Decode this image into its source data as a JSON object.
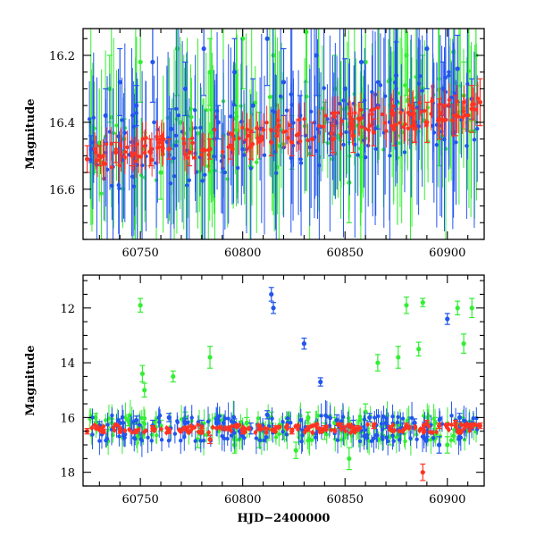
{
  "chart_data": [
    {
      "type": "scatter",
      "panel": "top",
      "title": "",
      "xlabel": "",
      "ylabel": "Magnitude",
      "xlim": [
        60722,
        60918
      ],
      "ylim": [
        16.75,
        16.12
      ],
      "y_inverted": true,
      "x_ticks": [
        60750,
        60800,
        60850,
        60900
      ],
      "x_tick_labels": [
        "60750",
        "60800",
        "60850",
        "60900"
      ],
      "y_ticks": [
        16.2,
        16.4,
        16.6
      ],
      "y_tick_labels": [
        "16.2",
        "16.4",
        "16.6"
      ],
      "grid": false,
      "legend": "none",
      "series": [
        {
          "color": "#33ee33",
          "x": [
            60728,
            60735,
            60742,
            60750,
            60752,
            60760,
            60768,
            60775,
            60784,
            60790,
            60800,
            60808,
            60815,
            60824,
            60831,
            60840,
            60845,
            60852,
            60860,
            60872,
            60880,
            60888,
            60896,
            60903,
            60908,
            60914
          ],
          "y": [
            16.52,
            16.3,
            16.45,
            16.22,
            16.48,
            16.55,
            16.18,
            16.42,
            16.25,
            16.5,
            16.15,
            16.44,
            16.2,
            16.46,
            16.13,
            16.4,
            16.3,
            16.58,
            16.22,
            16.35,
            16.2,
            16.3,
            16.45,
            16.19,
            16.32,
            16.2
          ],
          "yerr": [
            0.03,
            0.1,
            0.06,
            0.12,
            0.05,
            0.08,
            0.14,
            0.06,
            0.1,
            0.05,
            0.15,
            0.07,
            0.12,
            0.08,
            0.15,
            0.06,
            0.1,
            0.12,
            0.14,
            0.08,
            0.12,
            0.1,
            0.08,
            0.12,
            0.1,
            0.09
          ]
        },
        {
          "color": "#2255ee",
          "x": [
            60726,
            60733,
            60740,
            60748,
            60756,
            60765,
            60772,
            60781,
            60788,
            60796,
            60805,
            60812,
            60820,
            60828,
            60836,
            60843,
            60850,
            60858,
            60866,
            60875,
            60884,
            60890,
            60898,
            60905,
            60912
          ],
          "y": [
            16.48,
            16.38,
            16.28,
            16.35,
            16.22,
            16.42,
            16.3,
            16.18,
            16.4,
            16.25,
            16.35,
            16.15,
            16.28,
            16.38,
            16.2,
            16.45,
            16.3,
            16.22,
            16.35,
            16.26,
            16.4,
            16.18,
            16.3,
            16.24,
            16.33
          ],
          "yerr": [
            0.04,
            0.08,
            0.1,
            0.06,
            0.12,
            0.06,
            0.08,
            0.14,
            0.05,
            0.1,
            0.08,
            0.14,
            0.1,
            0.06,
            0.12,
            0.05,
            0.09,
            0.12,
            0.07,
            0.1,
            0.06,
            0.12,
            0.08,
            0.1,
            0.06
          ]
        },
        {
          "color": "#ff3322",
          "x": [
            60724,
            60730,
            60738,
            60746,
            60755,
            60764,
            60774,
            60784,
            60794,
            60804,
            60814,
            60824,
            60834,
            60844,
            60854,
            60864,
            60874,
            60884,
            60890,
            60896,
            60904,
            60912,
            60916
          ],
          "y": [
            16.51,
            16.5,
            16.49,
            16.5,
            16.49,
            16.48,
            16.49,
            16.48,
            16.47,
            16.47,
            16.46,
            16.46,
            16.45,
            16.45,
            16.44,
            16.43,
            16.42,
            16.41,
            16.4,
            16.39,
            16.38,
            16.36,
            16.34
          ],
          "yerr": [
            0.04,
            0.03,
            0.03,
            0.03,
            0.04,
            0.03,
            0.04,
            0.03,
            0.04,
            0.04,
            0.04,
            0.04,
            0.05,
            0.04,
            0.05,
            0.04,
            0.05,
            0.05,
            0.06,
            0.06,
            0.06,
            0.07,
            0.07
          ]
        }
      ]
    },
    {
      "type": "scatter",
      "panel": "bottom",
      "title": "",
      "xlabel": "HJD−2400000",
      "ylabel": "Magnitude",
      "xlim": [
        60722,
        60918
      ],
      "ylim": [
        18.5,
        10.8
      ],
      "y_inverted": true,
      "x_ticks": [
        60750,
        60800,
        60850,
        60900
      ],
      "x_tick_labels": [
        "60750",
        "60800",
        "60850",
        "60900"
      ],
      "y_ticks": [
        12,
        14,
        16,
        18
      ],
      "y_tick_labels": [
        "12",
        "14",
        "16",
        "18"
      ],
      "grid": false,
      "legend": "none",
      "series": [
        {
          "color": "#33ee33",
          "x": [
            60728,
            60736,
            60744,
            60750,
            60751,
            60752,
            60760,
            60766,
            60772,
            60778,
            60784,
            60790,
            60796,
            60802,
            60808,
            60814,
            60820,
            60826,
            60832,
            60840,
            60845,
            60852,
            60860,
            60866,
            60872,
            60876,
            60880,
            60886,
            60888,
            60894,
            60900,
            60905,
            60908,
            60912
          ],
          "y": [
            16.0,
            16.2,
            16.1,
            11.9,
            14.4,
            15.0,
            16.3,
            14.5,
            16.0,
            16.8,
            13.8,
            16.1,
            17.0,
            16.2,
            16.8,
            16.0,
            16.5,
            17.2,
            16.0,
            16.5,
            16.2,
            17.5,
            15.8,
            14.0,
            16.7,
            13.8,
            11.9,
            13.5,
            11.8,
            16.2,
            17.0,
            12.0,
            13.3,
            12.0
          ],
          "yerr": [
            0.15,
            0.15,
            0.2,
            0.25,
            0.3,
            0.25,
            0.2,
            0.2,
            0.2,
            0.3,
            0.4,
            0.2,
            0.3,
            0.2,
            0.3,
            0.2,
            0.3,
            0.3,
            0.2,
            0.3,
            0.2,
            0.4,
            0.3,
            0.3,
            0.3,
            0.4,
            0.3,
            0.25,
            0.15,
            0.2,
            0.3,
            0.25,
            0.35,
            0.35
          ]
        },
        {
          "color": "#2255ee",
          "x": [
            60730,
            60740,
            60748,
            60756,
            60764,
            60772,
            60780,
            60788,
            60796,
            60804,
            60812,
            60814,
            60815,
            60822,
            60830,
            60838,
            60846,
            60854,
            60862,
            60870,
            60878,
            60884,
            60890,
            60896,
            60900,
            60906,
            60912
          ],
          "y": [
            16.3,
            16.2,
            16.1,
            16.3,
            16.0,
            16.2,
            16.3,
            16.1,
            16.2,
            16.4,
            15.9,
            11.5,
            12.0,
            16.2,
            13.3,
            14.7,
            16.1,
            16.3,
            16.0,
            16.2,
            16.4,
            16.2,
            16.5,
            17.0,
            12.4,
            16.0,
            16.3
          ],
          "yerr": [
            0.15,
            0.15,
            0.15,
            0.2,
            0.15,
            0.15,
            0.2,
            0.15,
            0.15,
            0.2,
            0.15,
            0.25,
            0.2,
            0.15,
            0.2,
            0.15,
            0.2,
            0.2,
            0.15,
            0.2,
            0.2,
            0.15,
            0.2,
            0.3,
            0.2,
            0.15,
            0.15
          ]
        },
        {
          "color": "#ff3322",
          "x": [
            60724,
            60732,
            60740,
            60748,
            60756,
            60764,
            60772,
            60780,
            60784,
            60792,
            60800,
            60808,
            60816,
            60824,
            60832,
            60840,
            60848,
            60856,
            60864,
            60872,
            60880,
            60888,
            60890,
            60896,
            60904,
            60912,
            60916
          ],
          "y": [
            16.5,
            16.5,
            16.5,
            16.5,
            16.4,
            16.5,
            16.4,
            16.5,
            16.8,
            16.4,
            16.5,
            16.4,
            16.4,
            16.5,
            16.4,
            16.4,
            16.3,
            16.4,
            16.3,
            16.4,
            16.3,
            18.0,
            16.2,
            16.3,
            16.2,
            16.3,
            16.3
          ],
          "yerr": [
            0.1,
            0.08,
            0.08,
            0.08,
            0.1,
            0.08,
            0.08,
            0.1,
            0.15,
            0.08,
            0.1,
            0.08,
            0.1,
            0.1,
            0.1,
            0.1,
            0.1,
            0.1,
            0.1,
            0.1,
            0.1,
            0.3,
            0.1,
            0.1,
            0.1,
            0.1,
            0.1
          ]
        }
      ]
    }
  ]
}
